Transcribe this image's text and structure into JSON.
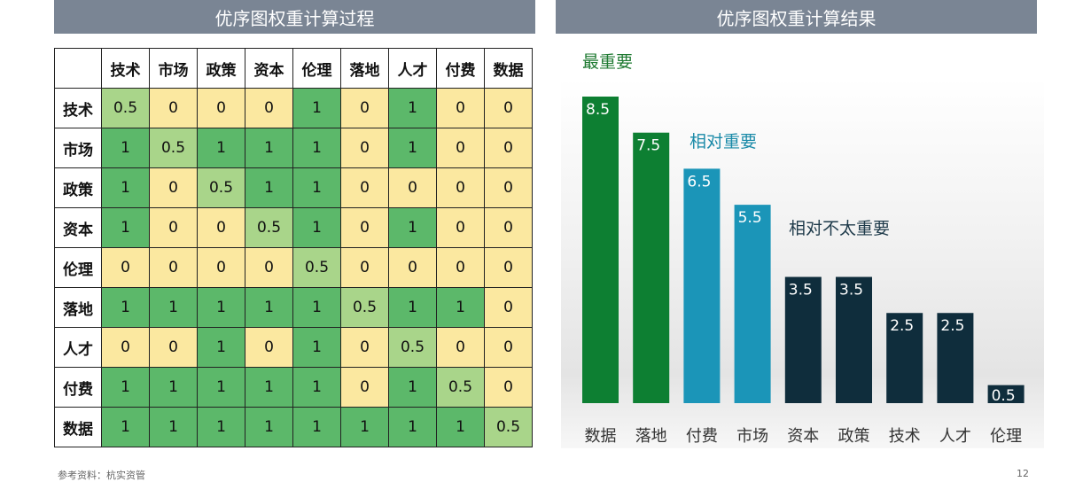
{
  "left_title": "优序图权重计算过程",
  "right_title": "优序图权重计算结果",
  "matrix": {
    "headers": [
      "技术",
      "市场",
      "政策",
      "资本",
      "伦理",
      "落地",
      "人才",
      "付费",
      "数据"
    ],
    "rows": [
      {
        "label": "技术",
        "values": [
          "0.5",
          "0",
          "0",
          "0",
          "1",
          "0",
          "1",
          "0",
          "0"
        ]
      },
      {
        "label": "市场",
        "values": [
          "1",
          "0.5",
          "1",
          "1",
          "1",
          "0",
          "1",
          "0",
          "0"
        ]
      },
      {
        "label": "政策",
        "values": [
          "1",
          "0",
          "0.5",
          "1",
          "1",
          "0",
          "0",
          "0",
          "0"
        ]
      },
      {
        "label": "资本",
        "values": [
          "1",
          "0",
          "0",
          "0.5",
          "1",
          "0",
          "1",
          "0",
          "0"
        ]
      },
      {
        "label": "伦理",
        "values": [
          "0",
          "0",
          "0",
          "0",
          "0.5",
          "0",
          "0",
          "0",
          "0"
        ]
      },
      {
        "label": "落地",
        "values": [
          "1",
          "1",
          "1",
          "1",
          "1",
          "0.5",
          "1",
          "1",
          "0"
        ]
      },
      {
        "label": "人才",
        "values": [
          "0",
          "0",
          "1",
          "0",
          "1",
          "0",
          "0.5",
          "0",
          "0"
        ]
      },
      {
        "label": "付费",
        "values": [
          "1",
          "1",
          "1",
          "1",
          "1",
          "0",
          "1",
          "0.5",
          "0"
        ]
      },
      {
        "label": "数据",
        "values": [
          "1",
          "1",
          "1",
          "1",
          "1",
          "1",
          "1",
          "1",
          "0.5"
        ]
      }
    ],
    "colors": {
      "one": "#5cb86a",
      "zero": "#fbe8a0",
      "half": "#a9d58a"
    }
  },
  "chart_data": {
    "type": "bar",
    "categories": [
      "数据",
      "落地",
      "付费",
      "市场",
      "资本",
      "政策",
      "技术",
      "人才",
      "伦理"
    ],
    "values": [
      8.5,
      7.5,
      6.5,
      5.5,
      3.5,
      3.5,
      2.5,
      2.5,
      0.5
    ],
    "colors": [
      "#0d7f32",
      "#0d7f32",
      "#1b95b8",
      "#1b95b8",
      "#0f2d3c",
      "#0f2d3c",
      "#0f2d3c",
      "#0f2d3c",
      "#0f2d3c"
    ],
    "ylim": [
      0,
      8.5
    ],
    "annotations": [
      "最重要",
      "相对重要",
      "相对不太重要"
    ]
  },
  "footer": {
    "source": "参考资料：杭实资管",
    "page": "12"
  }
}
